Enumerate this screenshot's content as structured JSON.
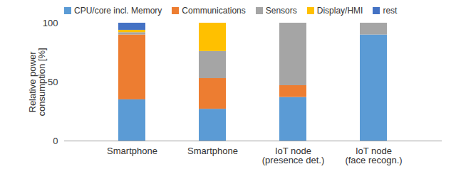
{
  "chart_data": {
    "type": "bar",
    "stacked": true,
    "categories": [
      "Smartphone",
      "Smartphone",
      "IoT node\n(presence det.)",
      "IoT node\n(face recogn.)"
    ],
    "y_label": "Relative power\nconsumption [%]",
    "ylim": [
      0,
      100
    ],
    "yticks": [
      0,
      50,
      100
    ],
    "grid": false,
    "legend": "top",
    "series": [
      {
        "name": "CPU/core incl. Memory",
        "color": "#5B9BD5",
        "values": [
          35,
          27,
          37,
          90
        ]
      },
      {
        "name": "Communications",
        "color": "#ED7D31",
        "values": [
          55,
          26,
          10,
          0
        ]
      },
      {
        "name": "Sensors",
        "color": "#A5A5A5",
        "values": [
          2,
          23,
          53,
          10
        ]
      },
      {
        "name": "Display/HMI",
        "color": "#FFC000",
        "values": [
          2,
          24,
          0,
          0
        ]
      },
      {
        "name": "rest",
        "color": "#4472C4",
        "values": [
          6,
          0,
          0,
          0
        ]
      }
    ]
  }
}
